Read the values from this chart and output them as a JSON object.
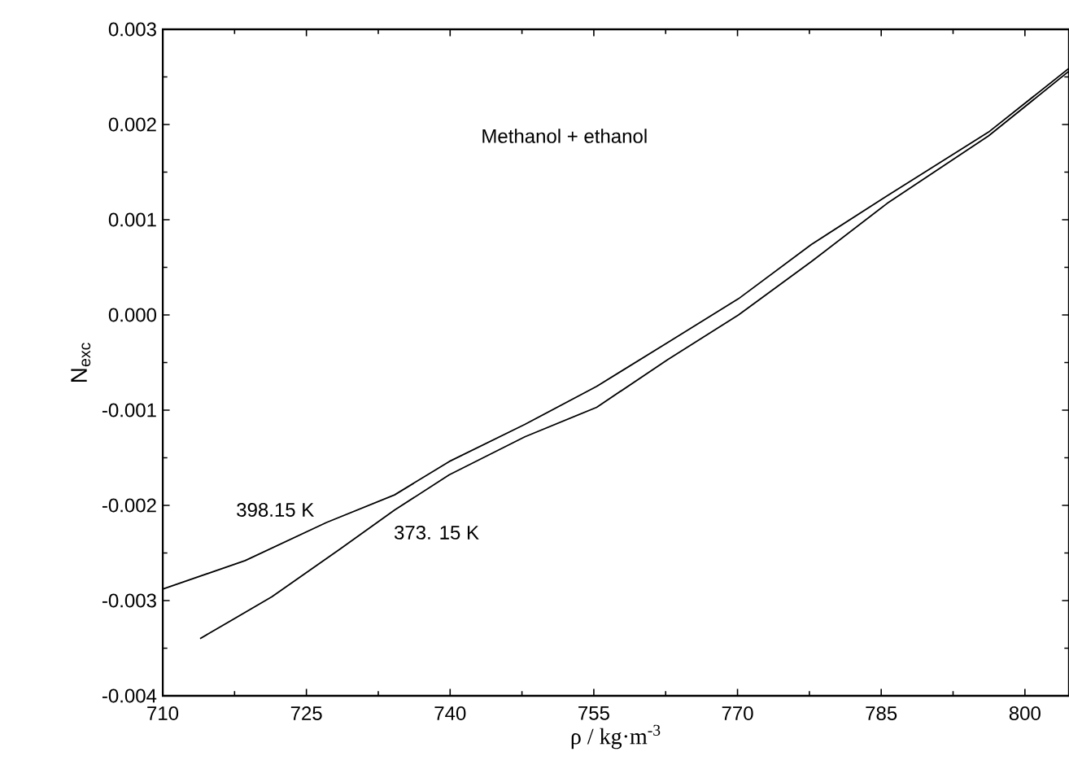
{
  "chart_data": {
    "type": "line",
    "xlabel": "ρ / kg·m$^{-3}$",
    "ylabel": "N$_{exc}$",
    "annotations": [
      "Methanol + ethanol"
    ],
    "xlim": [
      710,
      804.6
    ],
    "xticks": [
      710,
      725,
      740,
      755,
      770,
      785,
      800
    ],
    "ylim": [
      -0.004,
      0.003
    ],
    "yticks": [
      {
        "value": -0.004,
        "label": "-0.004"
      },
      {
        "value": -0.003,
        "label": "-0.003"
      },
      {
        "value": -0.002,
        "label": "-0.002"
      },
      {
        "value": -0.001,
        "label": "-0.001"
      },
      {
        "value": 0,
        "label": "0.000"
      },
      {
        "value": 0.001,
        "label": "0.001"
      },
      {
        "value": 0.002,
        "label": "0.002"
      },
      {
        "value": 0.003,
        "label": "0.003"
      }
    ],
    "series": [
      {
        "name": "398.15 K",
        "color": "#000000",
        "x": [
          710,
          718.6,
          727.1,
          734.2,
          739.9,
          747.8,
          755.3,
          762.7,
          770.1,
          777.7,
          785.6,
          796.2,
          804.6
        ],
        "values": [
          -0.00288,
          -0.00258,
          -0.00218,
          -0.00189,
          -0.00154,
          -0.00115,
          -0.00075,
          -0.00029,
          0.00017,
          0.00074,
          0.00125,
          0.00192,
          0.00259
        ]
      },
      {
        "name": "373. 15 K",
        "color": "#000000",
        "x": [
          713.9,
          721.4,
          728.5,
          734.2,
          739.9,
          747.8,
          755.3,
          762.7,
          770.1,
          777.7,
          785.6,
          796.2,
          804.6
        ],
        "values": [
          -0.0034,
          -0.00296,
          -0.00246,
          -0.00205,
          -0.00168,
          -0.00128,
          -0.00097,
          -0.00047,
          0.0,
          0.00056,
          0.00117,
          0.00188,
          0.00256
        ]
      }
    ],
    "grid": false,
    "marker": "none",
    "line_style": "solid"
  }
}
